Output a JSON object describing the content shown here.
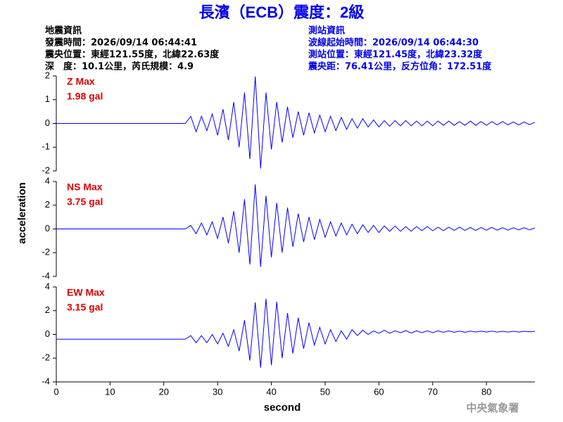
{
  "header": {
    "title": "長濱（ECB）震度：2級",
    "left": [
      "地震資訊",
      "發震時間：2026/09/14 06:44:41",
      "震央位置：東經121.55度，北緯22.63度",
      "深　度：10.1公里，芮氏規模：4.9"
    ],
    "right": [
      "測站資訊",
      "波線起始時間：2026/09/14 06:44:30",
      "測站位置：東經121.45度，北緯23.32度",
      "震央距：76.41公里，反方位角：172.51度"
    ],
    "y_label": "acceleration",
    "x_label": "second",
    "footer": "中央氣象署"
  },
  "chart_data": [
    {
      "type": "line",
      "annotations": [
        "Z Max",
        "1.98 gal"
      ],
      "x": [
        0,
        24,
        25,
        26,
        27,
        28,
        29,
        30,
        31,
        32,
        33,
        34,
        35,
        36,
        37,
        38,
        39,
        40,
        41,
        42,
        43,
        44,
        45,
        46,
        47,
        48,
        49,
        50,
        51,
        52,
        53,
        54,
        55,
        56,
        57,
        58,
        59,
        60,
        61,
        62,
        63,
        64,
        65,
        66,
        67,
        68,
        69,
        70,
        71,
        72,
        73,
        74,
        75,
        76,
        77,
        78,
        79,
        80,
        81,
        82,
        83,
        84,
        85,
        86,
        87,
        88,
        89
      ],
      "series": [
        {
          "color": "#0000ff",
          "values": [
            0,
            0,
            0.3,
            -0.35,
            0.3,
            -0.3,
            0.4,
            -0.5,
            0.6,
            -0.7,
            0.9,
            -1.0,
            1.3,
            -1.5,
            1.98,
            -1.9,
            1.3,
            -1.1,
            0.9,
            -0.8,
            0.7,
            -0.6,
            0.5,
            -0.5,
            0.45,
            -0.4,
            0.35,
            -0.35,
            0.3,
            -0.3,
            0.25,
            -0.25,
            0.2,
            -0.2,
            0.2,
            -0.15,
            0.15,
            -0.15,
            0.12,
            -0.12,
            0.12,
            -0.1,
            0.12,
            -0.1,
            0.1,
            -0.1,
            0.1,
            -0.1,
            0.1,
            -0.08,
            0.1,
            -0.08,
            0.08,
            -0.08,
            0.1,
            -0.08,
            0.08,
            -0.08,
            0.08,
            -0.06,
            0.08,
            -0.06,
            0.06,
            -0.06,
            0.06,
            -0.05,
            0.05
          ]
        }
      ],
      "xlim": [
        0,
        89
      ],
      "ylim": [
        -2,
        2
      ],
      "yticks": [
        -2,
        -1,
        0,
        1,
        2
      ]
    },
    {
      "type": "line",
      "annotations": [
        "NS Max",
        "3.75 gal"
      ],
      "x": [
        0,
        24,
        25,
        26,
        27,
        28,
        29,
        30,
        31,
        32,
        33,
        34,
        35,
        36,
        37,
        38,
        39,
        40,
        41,
        42,
        43,
        44,
        45,
        46,
        47,
        48,
        49,
        50,
        51,
        52,
        53,
        54,
        55,
        56,
        57,
        58,
        59,
        60,
        61,
        62,
        63,
        64,
        65,
        66,
        67,
        68,
        69,
        70,
        71,
        72,
        73,
        74,
        75,
        76,
        77,
        78,
        79,
        80,
        81,
        82,
        83,
        84,
        85,
        86,
        87,
        88,
        89
      ],
      "series": [
        {
          "color": "#0000ff",
          "values": [
            0,
            0,
            0.3,
            -0.4,
            0.5,
            -0.5,
            0.6,
            -0.8,
            1.0,
            -1.2,
            1.5,
            -2.0,
            2.5,
            -3.0,
            3.75,
            -3.2,
            2.8,
            -2.4,
            2.2,
            -2.0,
            1.8,
            -1.5,
            1.3,
            -1.1,
            1.0,
            -0.9,
            0.8,
            -0.7,
            0.6,
            -0.6,
            0.5,
            -0.5,
            0.4,
            -0.4,
            0.35,
            -0.3,
            0.3,
            -0.3,
            0.25,
            -0.2,
            0.25,
            -0.2,
            0.2,
            -0.2,
            0.2,
            -0.15,
            0.2,
            -0.15,
            0.15,
            -0.15,
            0.15,
            -0.12,
            0.15,
            -0.12,
            0.12,
            -0.12,
            0.12,
            -0.1,
            0.12,
            -0.1,
            0.1,
            -0.1,
            0.1,
            -0.08,
            0.1,
            -0.08,
            0.08
          ]
        }
      ],
      "xlim": [
        0,
        89
      ],
      "ylim": [
        -4,
        4
      ],
      "yticks": [
        -4,
        -2,
        0,
        2,
        4
      ]
    },
    {
      "type": "line",
      "annotations": [
        "EW Max",
        "3.15 gal"
      ],
      "x": [
        0,
        24,
        25,
        26,
        27,
        28,
        29,
        30,
        31,
        32,
        33,
        34,
        35,
        36,
        37,
        38,
        39,
        40,
        41,
        42,
        43,
        44,
        45,
        46,
        47,
        48,
        49,
        50,
        51,
        52,
        53,
        54,
        55,
        56,
        57,
        58,
        59,
        60,
        61,
        62,
        63,
        64,
        65,
        66,
        67,
        68,
        69,
        70,
        71,
        72,
        73,
        74,
        75,
        76,
        77,
        78,
        79,
        80,
        81,
        82,
        83,
        84,
        85,
        86,
        87,
        88,
        89
      ],
      "series": [
        {
          "color": "#0000ff",
          "values": [
            -0.4,
            -0.4,
            -0.1,
            -0.7,
            -0.1,
            -0.7,
            0.0,
            -0.8,
            0.1,
            -1.0,
            0.4,
            -1.4,
            1.2,
            -2.2,
            2.7,
            -2.8,
            3.0,
            -2.6,
            2.75,
            -2.0,
            1.8,
            -1.6,
            1.4,
            -1.2,
            1.0,
            -0.9,
            0.6,
            -0.8,
            0.4,
            -0.6,
            0.3,
            -0.4,
            0.4,
            -0.1,
            0.35,
            0.0,
            0.3,
            0.1,
            0.35,
            0.1,
            0.3,
            0.15,
            0.32,
            0.12,
            0.3,
            0.15,
            0.3,
            0.15,
            0.3,
            0.18,
            0.3,
            0.18,
            0.28,
            0.18,
            0.28,
            0.2,
            0.28,
            0.2,
            0.28,
            0.2,
            0.27,
            0.2,
            0.27,
            0.2,
            0.27,
            0.22,
            0.26
          ]
        }
      ],
      "xlim": [
        0,
        89
      ],
      "ylim": [
        -4,
        4
      ],
      "yticks": [
        -4,
        -2,
        0,
        2,
        4
      ],
      "xticks": [
        0,
        10,
        20,
        30,
        40,
        50,
        60,
        70,
        80
      ]
    }
  ]
}
